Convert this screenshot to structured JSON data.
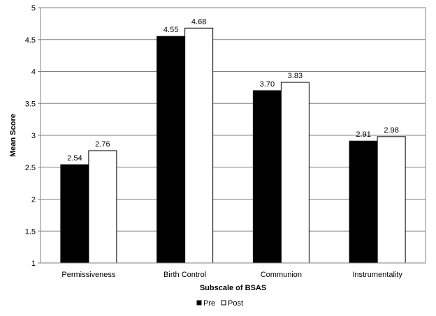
{
  "chart_data": {
    "type": "bar",
    "title": "",
    "xlabel": "Subscale of BSAS",
    "ylabel": "Mean Score",
    "ylim": [
      1,
      5
    ],
    "yticks": [
      "1",
      "1.5",
      "2",
      "2.5",
      "3",
      "3.5",
      "4",
      "4.5",
      "5"
    ],
    "grid": true,
    "legend_position": "bottom",
    "categories": [
      "Permissiveness",
      "Birth Control",
      "Communion",
      "Instrumentality"
    ],
    "series": [
      {
        "name": "Pre",
        "color": "#000000",
        "values": [
          2.54,
          4.55,
          3.7,
          2.91
        ],
        "labels": [
          "2.54",
          "4.55",
          "3.70",
          "2.91"
        ]
      },
      {
        "name": "Post",
        "color": "#ffffff",
        "values": [
          2.76,
          4.68,
          3.83,
          2.98
        ],
        "labels": [
          "2.76",
          "4.68",
          "3.83",
          "2.98"
        ]
      }
    ]
  }
}
